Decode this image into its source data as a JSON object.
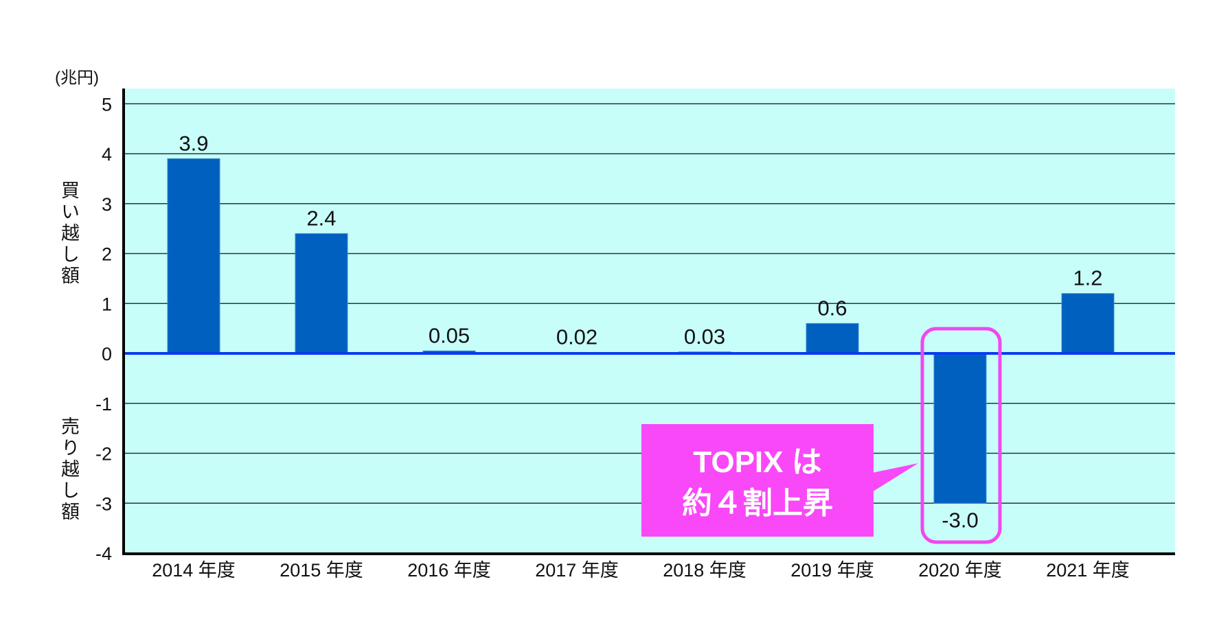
{
  "chart_data": {
    "type": "bar",
    "unit_label": "(兆円)",
    "ylabel_positive": "買い越し額",
    "ylabel_negative": "売り越し額",
    "categories": [
      "2014 年度",
      "2015 年度",
      "2016 年度",
      "2017 年度",
      "2018 年度",
      "2019 年度",
      "2020 年度",
      "2021 年度"
    ],
    "values": [
      3.9,
      2.4,
      0.05,
      0.02,
      0.03,
      0.6,
      -3.0,
      1.2
    ],
    "value_labels": [
      "3.9",
      "2.4",
      "0.05",
      "0.02",
      "0.03",
      "0.6",
      "-3.0",
      "1.2"
    ],
    "ylim": [
      -4,
      5
    ],
    "yticks": [
      5,
      4,
      3,
      2,
      1,
      0,
      -1,
      -2,
      -3,
      -4
    ],
    "grid": true,
    "highlight_category": "2020 年度",
    "annotation": {
      "line1": "TOPIX は",
      "line2": "約４割上昇"
    },
    "colors": {
      "bar": "#0060c0",
      "plot_bg": "#c8fefa",
      "zero_line": "#0a3cf0",
      "highlight": "#f048f0",
      "callout": "#f848f8"
    }
  }
}
